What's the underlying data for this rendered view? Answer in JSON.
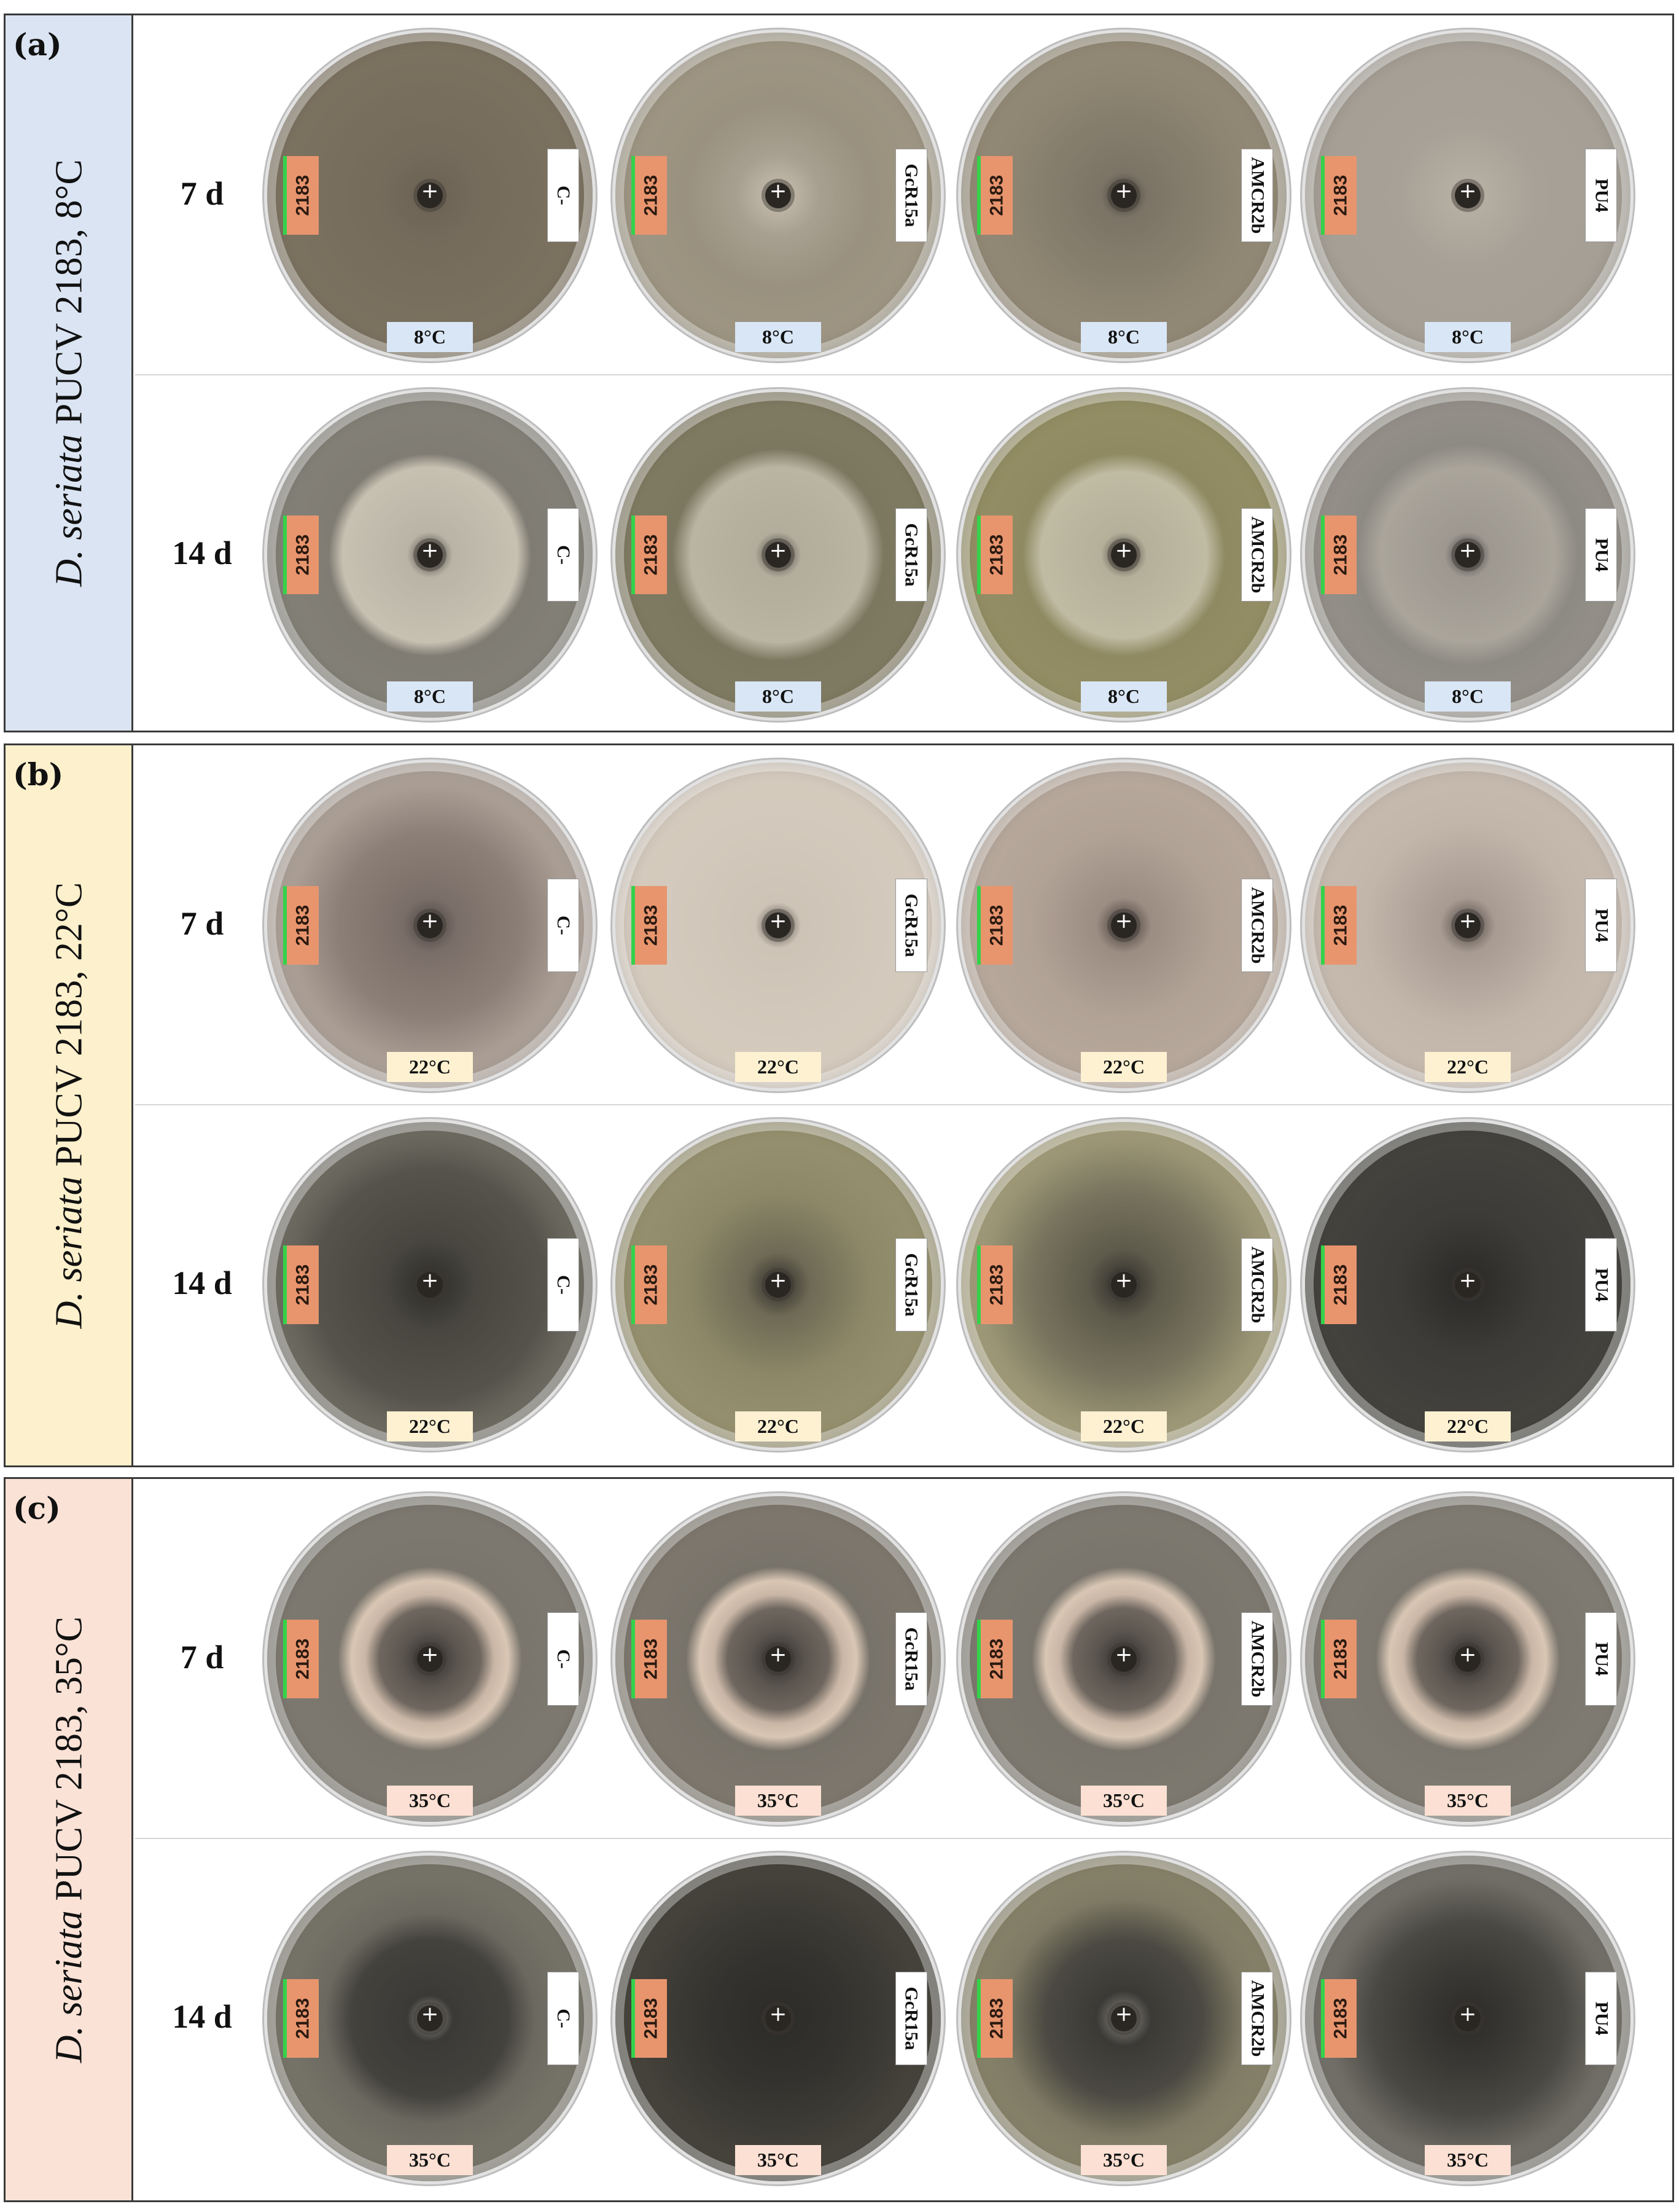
{
  "panels": [
    {
      "letter": "(a)",
      "title_italic": "D. seriata",
      "title_rest": " PUCV 2183, 8°C",
      "side_color": "#dbe4f3",
      "temp_label": "8°C",
      "temp_label_color": "#d9e6f5",
      "rows": [
        {
          "day": "7 d",
          "plates": [
            {
              "id": "2183",
              "treatment": "C-",
              "bg": "radial-gradient(circle,#6b6153 0%,#756b5c 20%,#7b715f 60%,#857a68 100%)"
            },
            {
              "id": "2183",
              "treatment": "GcR15a",
              "bg": "radial-gradient(circle,#c9c0b0 0%,#a79f90 18%,#9a927f 40%,#a39a88 100%)"
            },
            {
              "id": "2183",
              "treatment": "AMCR2b",
              "bg": "radial-gradient(circle,#3b3632 0%,#7b7466 10%,#8e8572 50%,#9a917d 100%)"
            },
            {
              "id": "2183",
              "treatment": "PU4",
              "bg": "radial-gradient(circle,#b9b2a5 0%,#a7a197 30%,#a49e94 70%,#b3ada3 100%)"
            }
          ]
        },
        {
          "day": "14 d",
          "plates": [
            {
              "id": "2183",
              "treatment": "C-",
              "bg": "radial-gradient(circle,#3a3835 0%,#b9b4a6 10%,#c7c1b2 38%,#7f7c73 44%,#8a877e 100%)"
            },
            {
              "id": "2183",
              "treatment": "GcR15a",
              "bg": "radial-gradient(circle,#3a3835 0%,#b2ad9c 10%,#bab5a2 38%,#7c7860 46%,#857f66 100%)"
            },
            {
              "id": "2183",
              "treatment": "AMCR2b",
              "bg": "radial-gradient(circle,#3a3835 0%,#b5b09a 10%,#c0bba3 36%,#8f8a62 44%,#9a9468 100%)"
            },
            {
              "id": "2183",
              "treatment": "PU4",
              "bg": "radial-gradient(circle,#3a3835 0%,#9d9890 10%,#aaa59b 38%,#8d8a84 48%,#a39d92 100%)"
            }
          ]
        }
      ]
    },
    {
      "letter": "(b)",
      "title_italic": "D. seriata",
      "title_rest": " PUCV 2183, 22°C",
      "side_color": "#fdf0cc",
      "temp_label": "22°C",
      "temp_label_color": "#fdf1d2",
      "rows": [
        {
          "day": "7 d",
          "plates": [
            {
              "id": "2183",
              "treatment": "C-",
              "bg": "radial-gradient(circle,#4a4440 0%,#7a6e68 12%,#8c7f77 40%,#a89c93 60%,#c3b8ad 100%)"
            },
            {
              "id": "2183",
              "treatment": "GcR15a",
              "bg": "radial-gradient(circle,#4a4440 0%,#cdc3b6 10%,#d3c9bc 50%,#d6ccbf 100%)"
            },
            {
              "id": "2183",
              "treatment": "AMCR2b",
              "bg": "radial-gradient(circle,#3a3430 0%,#9c8d83 12%,#b1a296 40%,#bfb0a3 100%)"
            },
            {
              "id": "2183",
              "treatment": "PU4",
              "bg": "radial-gradient(circle,#4a4440 0%,#a89b92 12%,#c2b6ab 45%,#cdc1b5 100%)"
            }
          ]
        },
        {
          "day": "14 d",
          "plates": [
            {
              "id": "2183",
              "treatment": "C-",
              "bg": "radial-gradient(circle,#2e2c2a 0%,#48463f 20%,#55534b 50%,#7d7a6f 75%,#9a9688 100%)"
            },
            {
              "id": "2183",
              "treatment": "GcR15a",
              "bg": "radial-gradient(circle,#2e2c2a 0%,#6e6a55 14%,#8d8868 40%,#a29c78 100%)"
            },
            {
              "id": "2183",
              "treatment": "AMCR2b",
              "bg": "radial-gradient(circle,#2e2c2a 0%,#5f5b4c 16%,#77735d 40%,#a8a27e 70%,#b5ae88 100%)"
            },
            {
              "id": "2183",
              "treatment": "PU4",
              "bg": "radial-gradient(circle,#2a2927 0%,#3c3b38 30%,#45443f 70%,#55534d 100%)"
            }
          ]
        }
      ]
    },
    {
      "letter": "(c)",
      "title_italic": "D. seriata",
      "title_rest": " PUCV 2183, 35°C",
      "side_color": "#fbe2d6",
      "temp_label": "35°C",
      "temp_label_color": "#fbe0d3",
      "rows": [
        {
          "day": "7 d",
          "plates": [
            {
              "id": "2183",
              "treatment": "C-",
              "bg": "radial-gradient(circle,#2f2c2a 0%,#5b554f 12%,#6f675f 22%,#c9b6a6 28%,#d9c6b4 34%,#7a766d 40%,#817d74 100%)"
            },
            {
              "id": "2183",
              "treatment": "GcR15a",
              "bg": "radial-gradient(circle,#2f2c2a 0%,#5b554f 12%,#6f675f 22%,#c9b6a6 28%,#d9c6b4 34%,#78736a 40%,#857e72 100%)"
            },
            {
              "id": "2183",
              "treatment": "AMCR2b",
              "bg": "radial-gradient(circle,#2f2c2a 0%,#5b554f 12%,#6f675f 22%,#c9b6a6 28%,#d9c6b4 34%,#79756c 40%,#847f75 100%)"
            },
            {
              "id": "2183",
              "treatment": "PU4",
              "bg": "radial-gradient(circle,#2f2c2a 0%,#5b554f 12%,#6f675f 22%,#c9b6a6 28%,#d9c6b4 34%,#7b776e 40%,#858178 100%)"
            }
          ]
        },
        {
          "day": "14 d",
          "plates": [
            {
              "id": "2183",
              "treatment": "C-",
              "bg": "radial-gradient(circle,#9a9a96 0%,#3c3a37 10%,#44423d 34%,#6c6a60 46%,#8a8779 100%)"
            },
            {
              "id": "2183",
              "treatment": "GcR15a",
              "bg": "radial-gradient(circle,#2c2b29 0%,#34332f 30%,#403e37 55%,#5b574b 100%)"
            },
            {
              "id": "2183",
              "treatment": "AMCR2b",
              "bg": "radial-gradient(circle,#8c8a84 0%,#3c3a36 12%,#4b4942 34%,#7e7a64 52%,#9c9778 100%)"
            },
            {
              "id": "2183",
              "treatment": "PU4",
              "bg": "radial-gradient(circle,#2c2b29 0%,#3a3935 22%,#4a4943 42%,#6e6c64 60%,#8e8b82 100%)"
            }
          ]
        }
      ]
    }
  ]
}
